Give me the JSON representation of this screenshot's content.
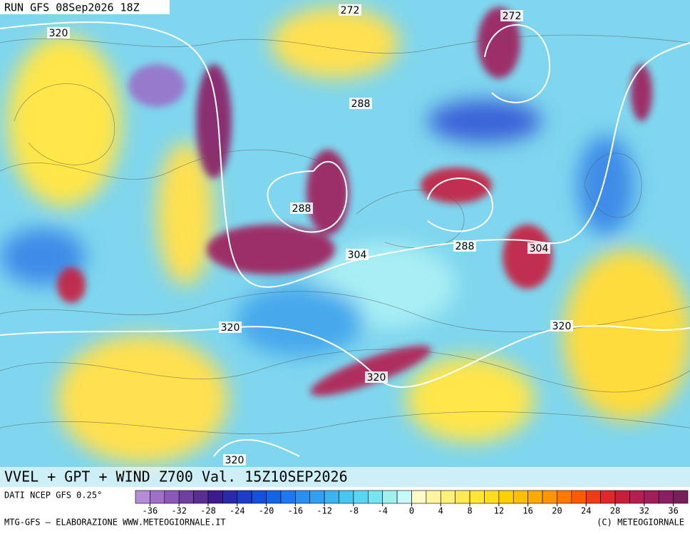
{
  "header": {
    "run": "RUN GFS 08Sep2026 18Z",
    "title": "VVEL + GPT + WIND Z700 Val. 15Z10SEP2026"
  },
  "contour_labels": [
    320,
    272,
    272,
    288,
    288,
    304,
    288,
    304,
    320,
    320,
    320,
    320
  ],
  "colorbar": {
    "clim": [
      -38,
      38
    ],
    "ticks": [
      -36,
      -32,
      -28,
      -24,
      -20,
      -16,
      -12,
      -8,
      -4,
      0,
      4,
      8,
      12,
      16,
      20,
      24,
      28,
      32,
      36
    ],
    "colors": [
      "#b58cd6",
      "#a070c8",
      "#8a58b8",
      "#7040a0",
      "#5a2e90",
      "#3c1c8c",
      "#2a2aa8",
      "#1e3cc8",
      "#1450dc",
      "#1464e6",
      "#1e78f0",
      "#2890f0",
      "#32a0f0",
      "#3cb4f0",
      "#46c8f0",
      "#5ad7f0",
      "#78e4f0",
      "#a0f0f0",
      "#c8f8f8",
      "#fffac8",
      "#fff5a0",
      "#fff078",
      "#ffeb50",
      "#ffe632",
      "#ffdc1e",
      "#ffd000",
      "#ffbe00",
      "#ffaa00",
      "#ff9600",
      "#ff7800",
      "#ff5a00",
      "#f03c14",
      "#e02828",
      "#c81e3c",
      "#b41e50",
      "#a01e5a",
      "#8c1e64",
      "#781e5a"
    ]
  },
  "footer": {
    "source": "DATI NCEP GFS 0.25°",
    "credit": "MTG-GFS — ELABORAZIONE WWW.METEOGIORNALE.IT",
    "copyright": "(C) METEOGIORNALE"
  }
}
